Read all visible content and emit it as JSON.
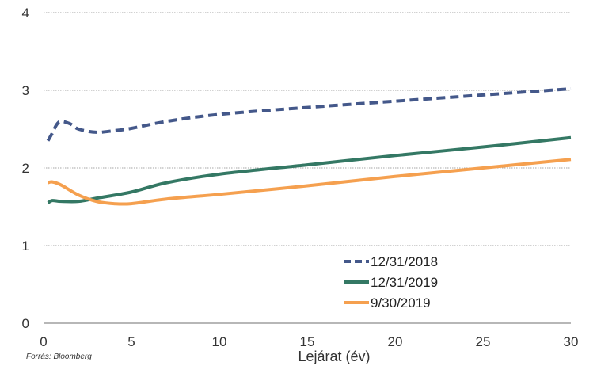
{
  "chart_data": {
    "type": "line",
    "xlabel": "Lejárat (év)",
    "ylabel": "",
    "xlim": [
      0,
      30
    ],
    "ylim": [
      0,
      4
    ],
    "x_ticks": [
      0,
      5,
      10,
      15,
      20,
      25,
      30
    ],
    "y_ticks": [
      0,
      1,
      2,
      3,
      4
    ],
    "grid": "horizontal",
    "legend_position": "bottom-right",
    "source": "Forrás: Bloomberg",
    "series": [
      {
        "name": "12/31/2018",
        "color": "#44588a",
        "dash": "dashed",
        "points": [
          [
            0.25,
            2.35
          ],
          [
            0.5,
            2.45
          ],
          [
            0.75,
            2.56
          ],
          [
            1,
            2.6
          ],
          [
            1.5,
            2.57
          ],
          [
            2,
            2.5
          ],
          [
            3,
            2.46
          ],
          [
            4,
            2.48
          ],
          [
            5,
            2.51
          ],
          [
            7,
            2.6
          ],
          [
            10,
            2.69
          ],
          [
            15,
            2.78
          ],
          [
            20,
            2.86
          ],
          [
            25,
            2.94
          ],
          [
            30,
            3.02
          ]
        ]
      },
      {
        "name": "12/31/2019",
        "color": "#347864",
        "dash": "solid",
        "points": [
          [
            0.25,
            1.55
          ],
          [
            0.5,
            1.58
          ],
          [
            1,
            1.57
          ],
          [
            2,
            1.57
          ],
          [
            3,
            1.61
          ],
          [
            5,
            1.69
          ],
          [
            7,
            1.81
          ],
          [
            10,
            1.92
          ],
          [
            15,
            2.04
          ],
          [
            20,
            2.16
          ],
          [
            25,
            2.27
          ],
          [
            30,
            2.39
          ]
        ]
      },
      {
        "name": "9/30/2019",
        "color": "#f5a04f",
        "dash": "solid",
        "points": [
          [
            0.25,
            1.81
          ],
          [
            0.5,
            1.82
          ],
          [
            1,
            1.78
          ],
          [
            2,
            1.65
          ],
          [
            3,
            1.57
          ],
          [
            4,
            1.54
          ],
          [
            5,
            1.54
          ],
          [
            7,
            1.6
          ],
          [
            10,
            1.66
          ],
          [
            15,
            1.77
          ],
          [
            20,
            1.89
          ],
          [
            25,
            2.0
          ],
          [
            30,
            2.11
          ]
        ]
      }
    ]
  }
}
